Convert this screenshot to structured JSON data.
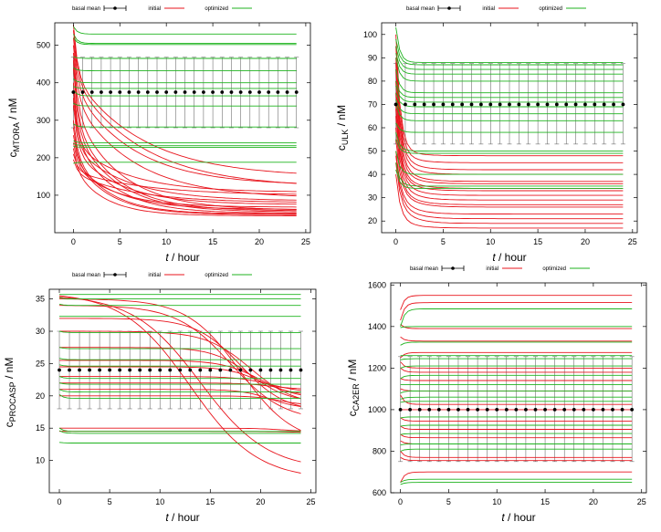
{
  "figure": {
    "colors": {
      "initial": "#e8141c",
      "optimized": "#1fb31f",
      "basal": "#000000",
      "axis": "#000000"
    }
  },
  "chart_data": [
    {
      "type": "line",
      "legend": {
        "basal": "basal mean",
        "initial": "initial",
        "optimized": "optimized",
        "placement": "top-center"
      },
      "xlabel_var": "t",
      "xlabel_unit": " / hour",
      "ylabel_main": "c",
      "ylabel_sub": "MTORA",
      "ylabel_unit": " / nM",
      "xlim": [
        -2,
        25.5
      ],
      "ylim": [
        0,
        560
      ],
      "xticks": [
        0,
        5,
        10,
        15,
        20,
        25
      ],
      "yticks": [
        100,
        200,
        300,
        400,
        500
      ],
      "basal_mean": {
        "value": 375,
        "err_low": 280,
        "err_high": 468
      },
      "optimized": [
        {
          "start": 530,
          "end": 505
        },
        {
          "start": 520,
          "end": 502
        },
        {
          "start": 550,
          "end": 530
        },
        {
          "start": 470,
          "end": 465
        },
        {
          "start": 440,
          "end": 432
        },
        {
          "start": 410,
          "end": 400
        },
        {
          "start": 390,
          "end": 385
        },
        {
          "start": 380,
          "end": 365
        },
        {
          "start": 345,
          "end": 338
        },
        {
          "start": 290,
          "end": 282
        },
        {
          "start": 245,
          "end": 240
        },
        {
          "start": 238,
          "end": 232
        },
        {
          "start": 230,
          "end": 228
        },
        {
          "start": 185,
          "end": 188
        }
      ],
      "initial": [
        {
          "start": 555,
          "mid": 420,
          "end": 148,
          "k": 0.3
        },
        {
          "start": 540,
          "mid": 410,
          "end": 120,
          "k": 0.3
        },
        {
          "start": 520,
          "mid": 390,
          "end": 126,
          "k": 0.35
        },
        {
          "start": 500,
          "mid": 360,
          "end": 92,
          "k": 0.35
        },
        {
          "start": 480,
          "mid": 330,
          "end": 60,
          "k": 0.45
        },
        {
          "start": 460,
          "mid": 300,
          "end": 58,
          "k": 0.5
        },
        {
          "start": 440,
          "mid": 280,
          "end": 55,
          "k": 0.5
        },
        {
          "start": 400,
          "mid": 260,
          "end": 52,
          "k": 0.55
        },
        {
          "start": 380,
          "mid": 240,
          "end": 108,
          "k": 0.4
        },
        {
          "start": 360,
          "mid": 230,
          "end": 85,
          "k": 0.4
        },
        {
          "start": 340,
          "mid": 220,
          "end": 75,
          "k": 0.45
        },
        {
          "start": 300,
          "mid": 210,
          "end": 50,
          "k": 0.6
        },
        {
          "start": 280,
          "mid": 200,
          "end": 48,
          "k": 0.6
        },
        {
          "start": 260,
          "mid": 190,
          "end": 62,
          "k": 0.5
        },
        {
          "start": 240,
          "mid": 180,
          "end": 68,
          "k": 0.5
        },
        {
          "start": 225,
          "mid": 170,
          "end": 45,
          "k": 0.65
        },
        {
          "start": 210,
          "mid": 165,
          "end": 100,
          "k": 0.3
        },
        {
          "start": 195,
          "mid": 160,
          "end": 80,
          "k": 0.35
        }
      ]
    },
    {
      "type": "line",
      "legend": {
        "basal": "basal mean",
        "initial": "initial",
        "optimized": "optimized",
        "placement": "top-center"
      },
      "xlabel_var": "t",
      "xlabel_unit": " / hour",
      "ylabel_main": "c",
      "ylabel_sub": "ULK",
      "ylabel_unit": " / nM",
      "xlim": [
        -1.5,
        25.5
      ],
      "ylim": [
        15,
        105
      ],
      "xticks": [
        0,
        5,
        10,
        15,
        20,
        25
      ],
      "yticks": [
        20,
        30,
        40,
        50,
        60,
        70,
        80,
        90,
        100
      ],
      "basal_mean": {
        "value": 70,
        "err_low": 53,
        "err_high": 87.5
      },
      "optimized": [
        {
          "start": 103,
          "end": 88
        },
        {
          "start": 98,
          "end": 87
        },
        {
          "start": 95,
          "end": 85
        },
        {
          "start": 92,
          "end": 83
        },
        {
          "start": 90,
          "end": 80
        },
        {
          "start": 85,
          "end": 75
        },
        {
          "start": 80,
          "end": 73
        },
        {
          "start": 78,
          "end": 71
        },
        {
          "start": 75,
          "end": 69
        },
        {
          "start": 72,
          "end": 66
        },
        {
          "start": 70,
          "end": 63
        },
        {
          "start": 62,
          "end": 58
        },
        {
          "start": 58,
          "end": 50
        },
        {
          "start": 55,
          "end": 49
        },
        {
          "start": 50,
          "end": 40
        },
        {
          "start": 45,
          "end": 35
        },
        {
          "start": 42,
          "end": 34
        }
      ],
      "initial": [
        {
          "start": 100,
          "mid": 52,
          "end": 48,
          "k": 1.5
        },
        {
          "start": 95,
          "mid": 51,
          "end": 45,
          "k": 1.5
        },
        {
          "start": 90,
          "mid": 50,
          "end": 42,
          "k": 1.5
        },
        {
          "start": 88,
          "mid": 48,
          "end": 40,
          "k": 1.5
        },
        {
          "start": 85,
          "mid": 46,
          "end": 37,
          "k": 1.5
        },
        {
          "start": 80,
          "mid": 44,
          "end": 36,
          "k": 1.5
        },
        {
          "start": 75,
          "mid": 42,
          "end": 34,
          "k": 1.5
        },
        {
          "start": 70,
          "mid": 41,
          "end": 33,
          "k": 1.5
        },
        {
          "start": 68,
          "mid": 40,
          "end": 31,
          "k": 1.5
        },
        {
          "start": 65,
          "mid": 38,
          "end": 29,
          "k": 1.5
        },
        {
          "start": 60,
          "mid": 36,
          "end": 27,
          "k": 1.5
        },
        {
          "start": 55,
          "mid": 35,
          "end": 26,
          "k": 1.5
        },
        {
          "start": 50,
          "mid": 32,
          "end": 23,
          "k": 1.5
        },
        {
          "start": 48,
          "mid": 30,
          "end": 21,
          "k": 1.5
        },
        {
          "start": 45,
          "mid": 28,
          "end": 19,
          "k": 1.5
        },
        {
          "start": 40,
          "mid": 22,
          "end": 17,
          "k": 1.5
        }
      ]
    },
    {
      "type": "line",
      "legend": {
        "basal": "basal mean",
        "initial": "initial",
        "optimized": "optimized",
        "placement": "top-center"
      },
      "xlabel_var": "t",
      "xlabel_unit": " / hour",
      "ylabel_main": "c",
      "ylabel_sub": "PROCASP",
      "ylabel_unit": " / nM",
      "xlim": [
        -1,
        25.5
      ],
      "ylim": [
        5,
        36.5
      ],
      "xticks": [
        0,
        5,
        10,
        15,
        20,
        25
      ],
      "yticks": [
        10,
        15,
        20,
        25,
        30,
        35
      ],
      "basal_mean": {
        "value": 24,
        "err_low": 18,
        "err_high": 30
      },
      "optimized": [
        {
          "start": 35.7,
          "end": 35.7
        },
        {
          "start": 35.2,
          "end": 35.0
        },
        {
          "start": 34.2,
          "end": 34.0
        },
        {
          "start": 32.3,
          "end": 32.3
        },
        {
          "start": 30.0,
          "end": 29.8
        },
        {
          "start": 27.5,
          "end": 27.3
        },
        {
          "start": 25.8,
          "end": 25.6
        },
        {
          "start": 24.8,
          "end": 24.6
        },
        {
          "start": 23.0,
          "end": 22.7
        },
        {
          "start": 22.0,
          "end": 21.8
        },
        {
          "start": 21.0,
          "end": 20.6
        },
        {
          "start": 20.2,
          "end": 19.6
        },
        {
          "start": 15.0,
          "end": 14.5
        },
        {
          "start": 14.6,
          "end": 14.2
        },
        {
          "start": 12.8,
          "end": 12.7
        }
      ],
      "initial": [
        {
          "start": 35.5,
          "end": 7.0,
          "t0": 13,
          "k": 0.2
        },
        {
          "start": 35.3,
          "end": 8.5,
          "t0": 14,
          "k": 0.2
        },
        {
          "start": 35.0,
          "end": 12.5,
          "t0": 18,
          "k": 0.25
        },
        {
          "start": 34.0,
          "end": 16.0,
          "t0": 17,
          "k": 0.25
        },
        {
          "start": 32.0,
          "end": 17.5,
          "t0": 18,
          "k": 0.3
        },
        {
          "start": 30.0,
          "end": 18.5,
          "t0": 19,
          "k": 0.3
        },
        {
          "start": 27.5,
          "end": 19.0,
          "t0": 19,
          "k": 0.35
        },
        {
          "start": 25.5,
          "end": 19.5,
          "t0": 20,
          "k": 0.35
        },
        {
          "start": 24.5,
          "end": 20.0,
          "t0": 20,
          "k": 0.4
        },
        {
          "start": 23.0,
          "end": 20.5,
          "t0": 21,
          "k": 0.4
        },
        {
          "start": 22.0,
          "end": 21.0,
          "t0": 21,
          "k": 0.45
        },
        {
          "start": 21.0,
          "end": 18.0,
          "t0": 21,
          "k": 0.45
        },
        {
          "start": 20.0,
          "end": 18.5,
          "t0": 22,
          "k": 0.5
        },
        {
          "start": 15.0,
          "end": 14.5,
          "t0": 22,
          "k": 0.5
        },
        {
          "start": 14.5,
          "end": 14.3,
          "t0": 23,
          "k": 0.5
        }
      ]
    },
    {
      "type": "line",
      "legend": {
        "basal": "basal mean",
        "initial": "initial",
        "optimized": "optimized",
        "placement": "top-center"
      },
      "xlabel_var": "t",
      "xlabel_unit": " / hour",
      "ylabel_main": "c",
      "ylabel_sub": "CA2ER",
      "ylabel_unit": " / nM",
      "xlim": [
        -1,
        25.5
      ],
      "ylim": [
        600,
        1610
      ],
      "xticks": [
        0,
        5,
        10,
        15,
        20,
        25
      ],
      "yticks": [
        600,
        800,
        1000,
        1200,
        1400,
        1600
      ],
      "basal_mean": {
        "value": 1000,
        "err_low": 750,
        "err_high": 1255
      },
      "optimized": [
        {
          "start": 1400,
          "end": 1485
        },
        {
          "start": 1395,
          "end": 1400
        },
        {
          "start": 1310,
          "end": 1325
        },
        {
          "start": 1260,
          "end": 1260
        },
        {
          "start": 1240,
          "end": 1245
        },
        {
          "start": 1200,
          "end": 1210
        },
        {
          "start": 1150,
          "end": 1165
        },
        {
          "start": 1120,
          "end": 1120
        },
        {
          "start": 1080,
          "end": 1090
        },
        {
          "start": 1050,
          "end": 1060
        },
        {
          "start": 1035,
          "end": 1040
        },
        {
          "start": 960,
          "end": 965
        },
        {
          "start": 920,
          "end": 925
        },
        {
          "start": 880,
          "end": 885
        },
        {
          "start": 830,
          "end": 835
        },
        {
          "start": 800,
          "end": 810
        },
        {
          "start": 650,
          "end": 665
        },
        {
          "start": 640,
          "end": 650
        }
      ],
      "initial": [
        {
          "start": 1480,
          "end": 1550
        },
        {
          "start": 1430,
          "end": 1515
        },
        {
          "start": 1410,
          "end": 1390
        },
        {
          "start": 1350,
          "end": 1330
        },
        {
          "start": 1250,
          "end": 1275
        },
        {
          "start": 1230,
          "end": 1200
        },
        {
          "start": 1200,
          "end": 1180
        },
        {
          "start": 1150,
          "end": 1140
        },
        {
          "start": 1100,
          "end": 1090
        },
        {
          "start": 1070,
          "end": 1025
        },
        {
          "start": 1000,
          "end": 1000
        },
        {
          "start": 960,
          "end": 945
        },
        {
          "start": 920,
          "end": 905
        },
        {
          "start": 880,
          "end": 865
        },
        {
          "start": 850,
          "end": 835
        },
        {
          "start": 800,
          "end": 770
        },
        {
          "start": 770,
          "end": 755
        },
        {
          "start": 650,
          "end": 700
        }
      ]
    }
  ]
}
